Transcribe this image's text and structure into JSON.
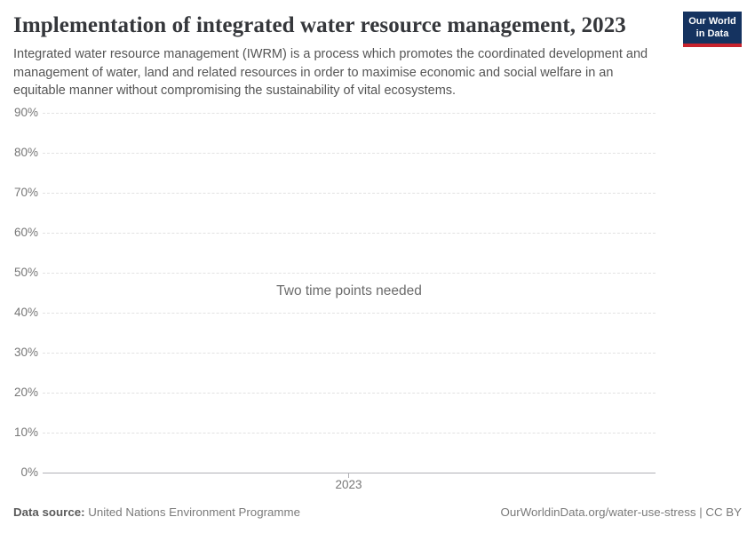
{
  "header": {
    "title": "Implementation of integrated water resource management, 2023",
    "subtitle": "Integrated water resource management (IWRM) is a process which promotes the coordinated development and management of water, land and related resources in order to maximise economic and social welfare in an equitable manner without compromising the sustainability of vital ecosystems."
  },
  "logo": {
    "line1": "Our World",
    "line2": "in Data",
    "bg_color": "#153360",
    "stripe_color": "#c8232d",
    "text_color": "#ffffff"
  },
  "chart_data": {
    "type": "line",
    "title": "Implementation of integrated water resource management, 2023",
    "series": [],
    "note": "Two time points needed",
    "x_tick_labels": [
      "2023"
    ],
    "y_tick_labels": [
      "90%",
      "80%",
      "70%",
      "60%",
      "50%",
      "40%",
      "30%",
      "20%",
      "10%",
      "0%"
    ],
    "ylim": [
      0,
      90
    ],
    "y_tick_step": 10,
    "xlabel": "",
    "ylabel": "",
    "grid": "horizontal-dashed",
    "legend": "none"
  },
  "footer": {
    "data_source_label": "Data source:",
    "data_source_value": "United Nations Environment Programme",
    "attribution": "OurWorldinData.org/water-use-stress | CC BY"
  },
  "colors": {
    "title": "#35373b",
    "subtitle": "#555555",
    "tick_label": "#777777",
    "gridline": "#e2e2e2",
    "axis_line": "#b0b0b5",
    "note_text": "#6b6b6b"
  }
}
